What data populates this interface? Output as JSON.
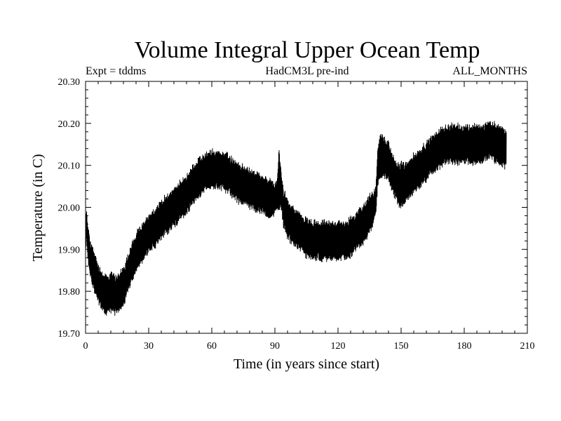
{
  "chart_data": {
    "type": "line",
    "title": "Volume Integral Upper Ocean Temp",
    "subtitle_left": "Expt = tddms",
    "subtitle_center": "HadCM3L pre-ind",
    "subtitle_right": "ALL_MONTHS",
    "xlabel": "Time (in years since start)",
    "ylabel": "Temperature (in C)",
    "xlim": [
      0,
      210
    ],
    "ylim": [
      19.7,
      20.3
    ],
    "xticks": [
      "0",
      "30",
      "60",
      "90",
      "120",
      "150",
      "180",
      "210"
    ],
    "yticks": [
      "19.70",
      "19.80",
      "19.90",
      "20.00",
      "20.10",
      "20.20",
      "20.30"
    ],
    "grid": false,
    "line_color": "#000000",
    "series": [
      {
        "x": [
          0,
          0.5,
          1,
          2,
          4,
          6,
          8,
          10,
          12,
          14,
          16,
          18,
          20,
          22,
          25,
          28,
          30,
          33,
          36,
          40,
          44,
          48,
          52,
          56,
          60,
          64,
          68,
          72,
          76,
          80,
          84,
          88,
          90,
          91,
          92,
          93,
          94,
          96,
          100,
          104,
          108,
          112,
          116,
          120,
          124,
          128,
          132,
          136,
          137,
          138,
          139,
          140,
          142,
          144,
          146,
          148,
          150,
          152,
          154,
          156,
          160,
          164,
          168,
          172,
          176,
          180,
          184,
          188,
          192,
          196,
          200
        ],
        "center": [
          19.93,
          19.96,
          19.92,
          19.88,
          19.85,
          19.82,
          19.8,
          19.79,
          19.8,
          19.79,
          19.8,
          19.81,
          19.84,
          19.87,
          19.9,
          19.92,
          19.94,
          19.95,
          19.97,
          19.99,
          20.01,
          20.03,
          20.06,
          20.08,
          20.09,
          20.09,
          20.08,
          20.06,
          20.05,
          20.04,
          20.03,
          20.02,
          20.02,
          20.03,
          20.07,
          20.04,
          20.0,
          19.97,
          19.95,
          19.93,
          19.92,
          19.92,
          19.92,
          19.92,
          19.92,
          19.94,
          19.96,
          19.99,
          20.0,
          20.02,
          20.1,
          20.12,
          20.12,
          20.11,
          20.08,
          20.06,
          20.05,
          20.06,
          20.07,
          20.08,
          20.1,
          20.12,
          20.14,
          20.15,
          20.15,
          20.15,
          20.15,
          20.15,
          20.16,
          20.15,
          20.14
        ],
        "amplitude": [
          0.03,
          0.03,
          0.04,
          0.04,
          0.04,
          0.04,
          0.04,
          0.04,
          0.04,
          0.04,
          0.04,
          0.04,
          0.04,
          0.04,
          0.04,
          0.04,
          0.04,
          0.04,
          0.04,
          0.04,
          0.04,
          0.04,
          0.04,
          0.04,
          0.04,
          0.04,
          0.04,
          0.04,
          0.04,
          0.04,
          0.04,
          0.04,
          0.03,
          0.03,
          0.06,
          0.04,
          0.04,
          0.04,
          0.04,
          0.04,
          0.04,
          0.04,
          0.04,
          0.04,
          0.04,
          0.04,
          0.04,
          0.04,
          0.03,
          0.03,
          0.04,
          0.05,
          0.04,
          0.04,
          0.04,
          0.04,
          0.05,
          0.04,
          0.04,
          0.04,
          0.04,
          0.04,
          0.04,
          0.04,
          0.04,
          0.04,
          0.04,
          0.04,
          0.04,
          0.04,
          0.04
        ]
      }
    ]
  }
}
